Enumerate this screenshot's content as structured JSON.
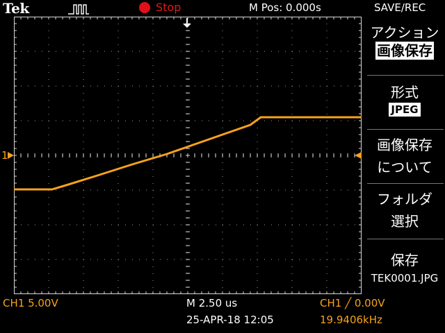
{
  "header": {
    "brand": "Tek",
    "run_state": "Stop",
    "m_pos": "M Pos: 0.000s",
    "menu_title": "SAVE/REC"
  },
  "side_menu": {
    "action_label": "アクション",
    "action_value": "画像保存",
    "format_label": "形式",
    "format_value": "JPEG",
    "about_line1": "画像保存",
    "about_line2": "について",
    "folder_line1": "フォルダ",
    "folder_line2": "選択",
    "save_label": "保存",
    "save_file": "TEK0001.JPG"
  },
  "footer": {
    "ch1_scale": "CH1  5.00V",
    "timebase": "M 2.50 us",
    "datetime": "25-APR-18 12:05",
    "trigger": "CH1 ╱ 0.00V",
    "frequency": "19.9406kHz"
  },
  "channel": {
    "marker_label": "1",
    "color": "#f7a21b"
  },
  "colors": {
    "run_indicator": "#e0101a",
    "trace": "#f7a21b",
    "grid": "#d8d8d8"
  }
}
